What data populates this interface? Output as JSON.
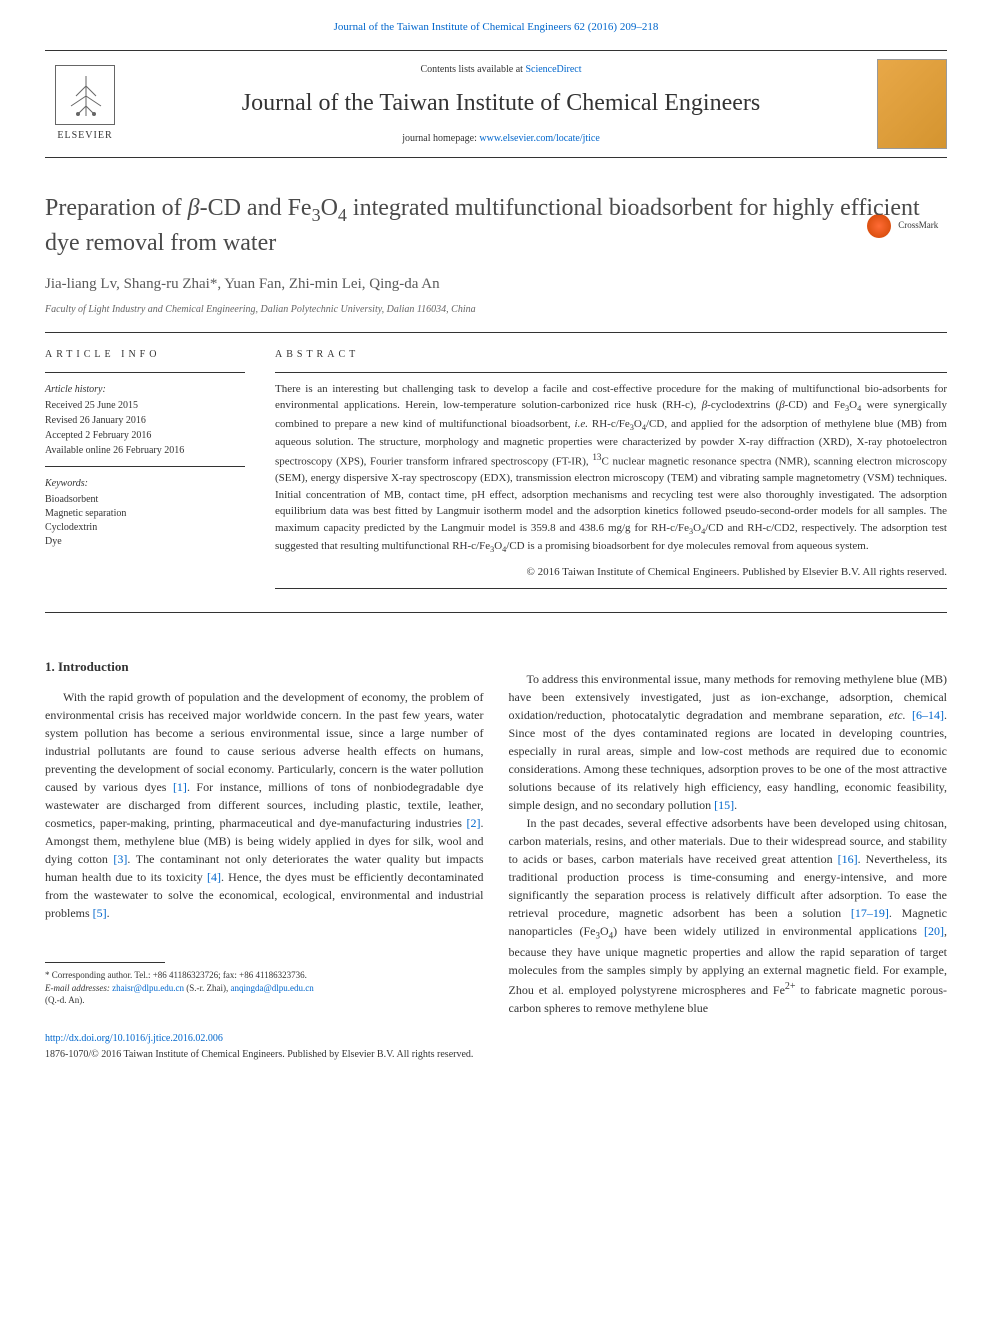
{
  "top_citation": "Journal of the Taiwan Institute of Chemical Engineers 62 (2016) 209–218",
  "header": {
    "contents_lists": "Contents lists available at ",
    "contents_lists_link": "ScienceDirect",
    "journal_title": "Journal of the Taiwan Institute of Chemical Engineers",
    "homepage_label": "journal homepage: ",
    "homepage_url": "www.elsevier.com/locate/jtice",
    "elsevier_text": "ELSEVIER"
  },
  "crossmark_text": "CrossMark",
  "article": {
    "title_html": "Preparation of <i>β</i>-CD and Fe<sub>3</sub>O<sub>4</sub> integrated multifunctional bioadsorbent for highly efficient dye removal from water",
    "authors": "Jia-liang Lv, Shang-ru Zhai*, Yuan Fan, Zhi-min Lei, Qing-da An",
    "affiliation": "Faculty of Light Industry and Chemical Engineering, Dalian Polytechnic University, Dalian 116034, China"
  },
  "article_info": {
    "heading": "ARTICLE INFO",
    "history_label": "Article history:",
    "received": "Received 25 June 2015",
    "revised": "Revised 26 January 2016",
    "accepted": "Accepted 2 February 2016",
    "online": "Available online 26 February 2016",
    "keywords_label": "Keywords:",
    "keywords": [
      "Bioadsorbent",
      "Magnetic separation",
      "Cyclodextrin",
      "Dye"
    ]
  },
  "abstract": {
    "heading": "ABSTRACT",
    "text_html": "There is an interesting but challenging task to develop a facile and cost-effective procedure for the making of multifunctional bio-adsorbents for environmental applications. Herein, low-temperature solution-carbonized rice husk (RH-c), <i>β</i>-cyclodextrins (<i>β</i>-CD) and Fe<sub>3</sub>O<sub>4</sub> were synergically combined to prepare a new kind of multifunctional bioadsorbent, <i>i.e.</i> RH-c/Fe<sub>3</sub>O<sub>4</sub>/CD, and applied for the adsorption of methylene blue (MB) from aqueous solution. The structure, morphology and magnetic properties were characterized by powder X-ray diffraction (XRD), X-ray photoelectron spectroscopy (XPS), Fourier transform infrared spectroscopy (FT-IR), <sup>13</sup>C nuclear magnetic resonance spectra (NMR), scanning electron microscopy (SEM), energy dispersive X-ray spectroscopy (EDX), transmission electron microscopy (TEM) and vibrating sample magnetometry (VSM) techniques. Initial concentration of MB, contact time, pH effect, adsorption mechanisms and recycling test were also thoroughly investigated. The adsorption equilibrium data was best fitted by Langmuir isotherm model and the adsorption kinetics followed pseudo-second-order models for all samples. The maximum capacity predicted by the Langmuir model is 359.8 and 438.6 mg/g for RH-c/Fe<sub>3</sub>O<sub>4</sub>/CD and RH-c/CD2, respectively. The adsorption test suggested that resulting multifunctional RH-c/Fe<sub>3</sub>O<sub>4</sub>/CD is a promising bioadsorbent for dye molecules removal from aqueous system.",
    "copyright": "© 2016 Taiwan Institute of Chemical Engineers. Published by Elsevier B.V. All rights reserved."
  },
  "introduction": {
    "heading": "1. Introduction",
    "col1_html": "<p>With the rapid growth of population and the development of economy, the problem of environmental crisis has received major worldwide concern. In the past few years, water system pollution has become a serious environmental issue, since a large number of industrial pollutants are found to cause serious adverse health effects on humans, preventing the development of social economy. Particularly, concern is the water pollution caused by various dyes <a class=\"ref-link\">[1]</a>. For instance, millions of tons of nonbiodegradable dye wastewater are discharged from different sources, including plastic, textile, leather, cosmetics, paper-making, printing, pharmaceutical and dye-manufacturing industries <a class=\"ref-link\">[2]</a>. Amongst them, methylene blue (MB) is being widely applied in dyes for silk, wool and dying cotton <a class=\"ref-link\">[3]</a>. The contaminant not only deteriorates the water quality but impacts human health due to its toxicity <a class=\"ref-link\">[4]</a>. Hence, the dyes must be efficiently decontaminated from the wastewater to solve the economical, ecological, environmental and industrial problems <a class=\"ref-link\">[5]</a>.</p>",
    "col2_html": "<p>To address this environmental issue, many methods for removing methylene blue (MB) have been extensively investigated, just as ion-exchange, adsorption, chemical oxidation/reduction, photocatalytic degradation and membrane separation, <i>etc.</i> <a class=\"ref-link\">[6–14]</a>. Since most of the dyes contaminated regions are located in developing countries, especially in rural areas, simple and low-cost methods are required due to economic considerations. Among these techniques, adsorption proves to be one of the most attractive solutions because of its relatively high efficiency, easy handling, economic feasibility, simple design, and no secondary pollution <a class=\"ref-link\">[15]</a>.</p><p>In the past decades, several effective adsorbents have been developed using chitosan, carbon materials, resins, and other materials. Due to their widespread source, and stability to acids or bases, carbon materials have received great attention <a class=\"ref-link\">[16]</a>. Nevertheless, its traditional production process is time-consuming and energy-intensive, and more significantly the separation process is relatively difficult after adsorption. To ease the retrieval procedure, magnetic adsorbent has been a solution <a class=\"ref-link\">[17–19]</a>. Magnetic nanoparticles (Fe<sub>3</sub>O<sub>4</sub>) have been widely utilized in environmental applications <a class=\"ref-link\">[20]</a>, because they have unique magnetic properties and allow the rapid separation of target molecules from the samples simply by applying an external magnetic field. For example, Zhou et al. employed polystyrene microspheres and Fe<sup>2+</sup> to fabricate magnetic porous-carbon spheres to remove methylene blue</p>"
  },
  "footnote": {
    "corresponding": "* Corresponding author. Tel.: +86 41186323726; fax: +86 41186323736.",
    "email_label": "E-mail addresses: ",
    "email1": "zhaisr@dlpu.edu.cn",
    "email1_name": " (S.-r. Zhai), ",
    "email2": "anqingda@dlpu.edu.cn",
    "email2_name": "(Q.-d. An)."
  },
  "footer": {
    "doi": "http://dx.doi.org/10.1016/j.jtice.2016.02.006",
    "copyright": "1876-1070/© 2016 Taiwan Institute of Chemical Engineers. Published by Elsevier B.V. All rights reserved."
  },
  "colors": {
    "link": "#0066cc",
    "text": "#333333",
    "muted": "#666666",
    "title": "#4a4a4a"
  }
}
